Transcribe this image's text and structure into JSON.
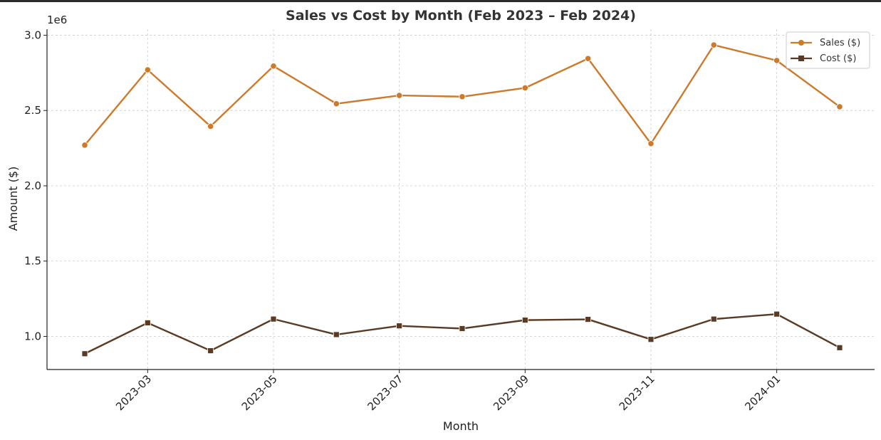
{
  "chart_data": {
    "type": "line",
    "title": "Sales vs Cost by Month (Feb 2023 – Feb 2024)",
    "xlabel": "Month",
    "ylabel": "Amount ($)",
    "y_offset_label": "1e6",
    "x": [
      "2023-02",
      "2023-03",
      "2023-04",
      "2023-05",
      "2023-06",
      "2023-07",
      "2023-08",
      "2023-09",
      "2023-10",
      "2023-11",
      "2023-12",
      "2024-01",
      "2024-02"
    ],
    "x_tick_labels": [
      "2023-03",
      "2023-05",
      "2023-07",
      "2023-09",
      "2023-11",
      "2024-01"
    ],
    "y_tick_labels": [
      "1.0",
      "1.5",
      "2.0",
      "2.5",
      "3.0"
    ],
    "y_ticks": [
      1.0,
      1.5,
      2.0,
      2.5,
      3.0
    ],
    "ylim": [
      0.78,
      3.04
    ],
    "grid": true,
    "legend_position": "top-right",
    "series": [
      {
        "name": "Sales ($)",
        "color": "#cc7a2c",
        "marker": "circle",
        "values": [
          2.27,
          2.77,
          2.395,
          2.795,
          2.545,
          2.6,
          2.592,
          2.65,
          2.845,
          2.28,
          2.935,
          2.832,
          2.525
        ]
      },
      {
        "name": "Cost ($)",
        "color": "#5a3a22",
        "marker": "square",
        "values": [
          0.885,
          1.09,
          0.905,
          1.115,
          1.012,
          1.07,
          1.052,
          1.108,
          1.113,
          0.98,
          1.115,
          1.148,
          0.925
        ]
      }
    ]
  }
}
